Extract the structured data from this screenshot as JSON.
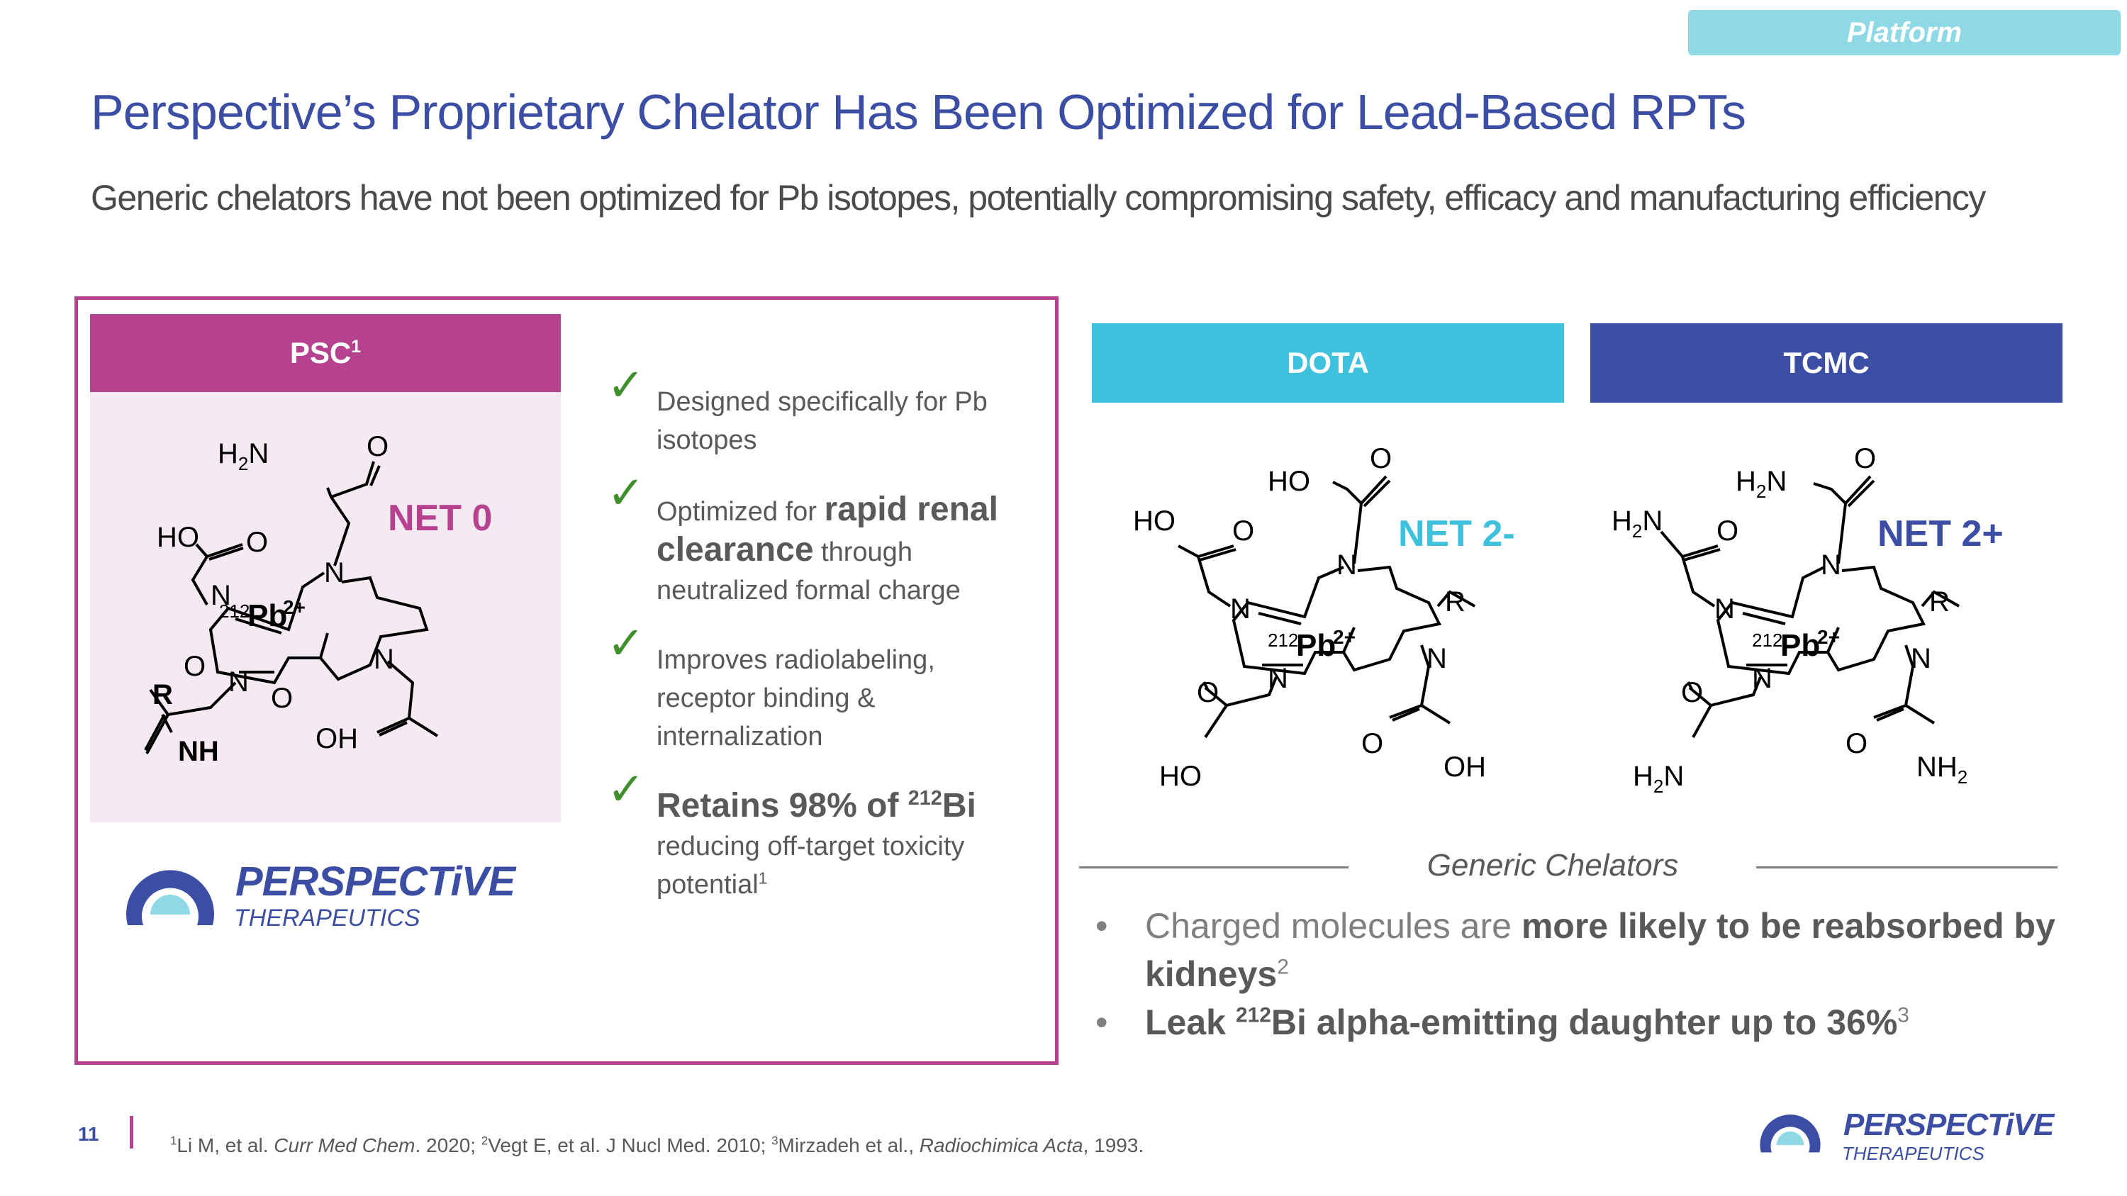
{
  "tag": "Platform",
  "title": "Perspective’s Proprietary Chelator Has Been Optimized for Lead-Based RPTs",
  "subtitle": "Generic chelators have not been optimized for Pb isotopes, potentially compromising safety, efficacy and manufacturing efficiency",
  "psc": {
    "header": "PSC",
    "header_sup": "1",
    "net": "NET 0",
    "molecule": {
      "ion_mass": "212",
      "ion": "Pb",
      "ion_charge": "2+",
      "labels": [
        "H2N",
        "O",
        "HO",
        "O",
        "N",
        "N",
        "N",
        "N",
        "O",
        "R",
        "NH",
        "O",
        "OH"
      ]
    }
  },
  "logo": {
    "word": "PERSPECTiVE",
    "sub": "THERAPEUTICS"
  },
  "checks": [
    {
      "pre": "Designed specifically for Pb isotopes",
      "bold": "",
      "post": ""
    },
    {
      "pre": "Optimized for ",
      "bold": "rapid renal clearance",
      "post": " through neutralized formal charge"
    },
    {
      "pre": "Improves radiolabeling, receptor binding & internalization",
      "bold": "",
      "post": ""
    },
    {
      "bold_a": "Retains 98% of ",
      "sup": "212",
      "bold_b": "Bi",
      "post": "reducing off-target toxicity potential",
      "post_sup": "1"
    }
  ],
  "dota": {
    "header": "DOTA",
    "net": "NET 2-",
    "ion_mass": "212",
    "ion": "Pb",
    "ion_charge": "2+"
  },
  "tcmc": {
    "header": "TCMC",
    "net": "NET 2+",
    "ion_mass": "212",
    "ion": "Pb",
    "ion_charge": "2+"
  },
  "generic_label": "Generic Chelators",
  "bullets": [
    {
      "pre": "Charged molecules are ",
      "bold": "more likely to be reabsorbed by kidneys",
      "sup": "2"
    },
    {
      "bold_a": "Leak ",
      "sup_a": "212",
      "bold_b": "Bi alpha-emitting daughter up to 36%",
      "sup": "3"
    }
  ],
  "footer": {
    "page": "11",
    "refs": [
      {
        "sup": "1",
        "text": "Li M, et al. ",
        "ital": "Curr Med Chem",
        "after": ". 2020; "
      },
      {
        "sup": "2",
        "text": "Vegt E, et al. J Nucl Med. 2010; ",
        "ital": "",
        "after": ""
      },
      {
        "sup": "3",
        "text": "Mirzadeh et al., ",
        "ital": "Radiochimica Acta",
        "after": ", 1993."
      }
    ]
  },
  "colors": {
    "navy": "#3c4ea3",
    "magenta": "#b5418f",
    "cyan": "#3ec1dc",
    "tag": "#8fd9e6",
    "check": "#3f8f2c"
  }
}
